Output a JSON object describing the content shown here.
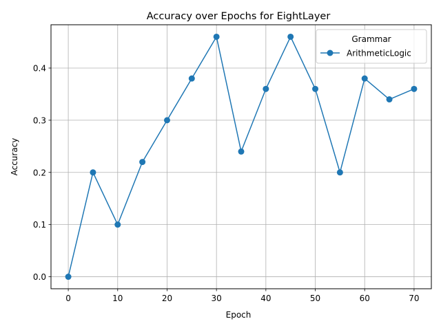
{
  "chart_data": {
    "type": "line",
    "title": "Accuracy over Epochs for EightLayer",
    "xlabel": "Epoch",
    "ylabel": "Accuracy",
    "x": [
      0,
      5,
      10,
      15,
      20,
      25,
      30,
      35,
      40,
      45,
      50,
      55,
      60,
      65,
      70
    ],
    "series": [
      {
        "name": "ArithmeticLogic",
        "values": [
          0.0,
          0.2,
          0.1,
          0.22,
          0.3,
          0.38,
          0.46,
          0.24,
          0.36,
          0.46,
          0.36,
          0.2,
          0.38,
          0.34,
          0.36
        ],
        "color": "#1f77b4",
        "marker": "circle"
      }
    ],
    "xticks": [
      0,
      10,
      20,
      30,
      40,
      50,
      60,
      70
    ],
    "xtick_labels": [
      "0",
      "10",
      "20",
      "30",
      "40",
      "50",
      "60",
      "70"
    ],
    "yticks": [
      0.0,
      0.1,
      0.2,
      0.3,
      0.4
    ],
    "ytick_labels": [
      "0.0",
      "0.1",
      "0.2",
      "0.3",
      "0.4"
    ],
    "xlim": [
      -3.5,
      73.5
    ],
    "ylim": [
      -0.023,
      0.483
    ],
    "grid": true,
    "legend": {
      "title": "Grammar",
      "placement": "top-right"
    }
  }
}
